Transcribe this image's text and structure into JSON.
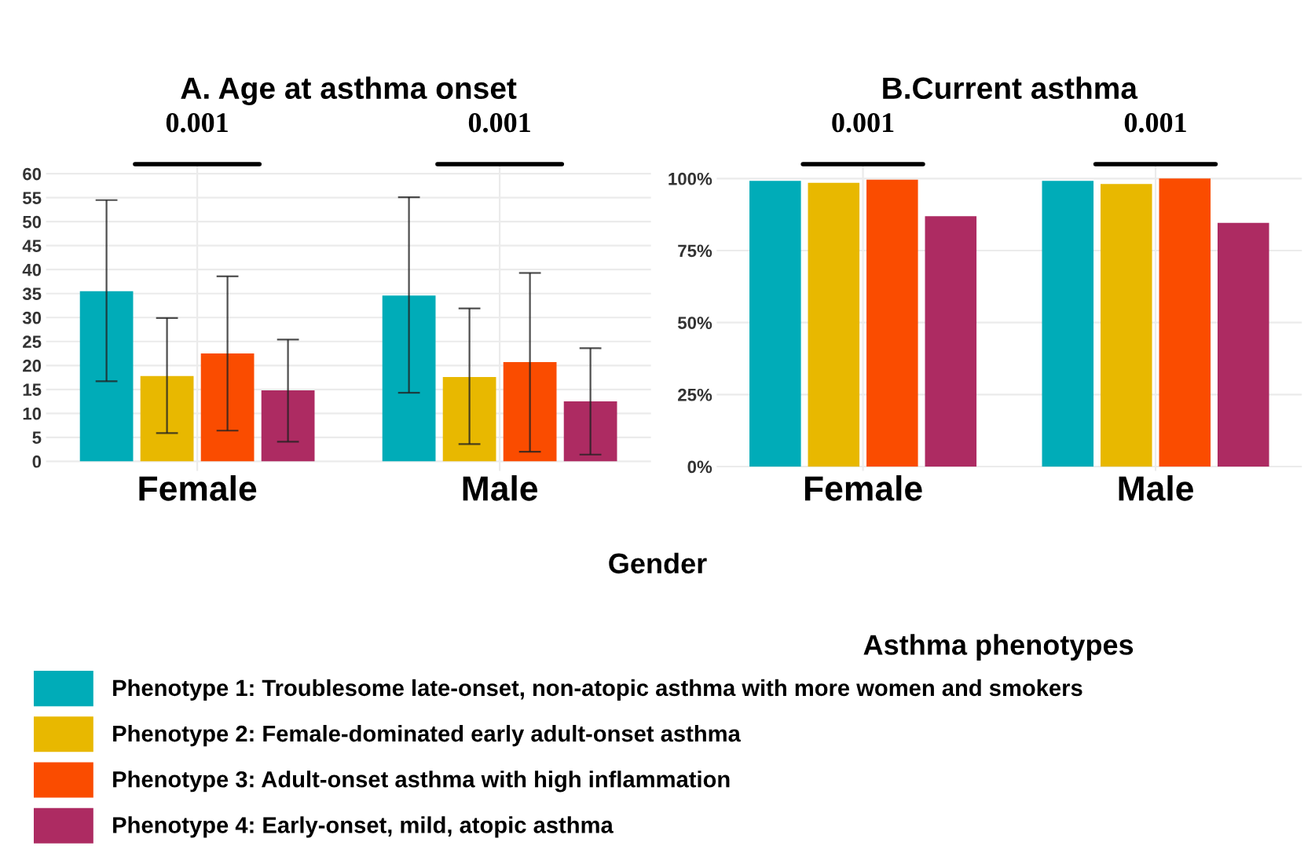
{
  "chart_data": [
    {
      "type": "bar",
      "title": "A. Age at asthma onset",
      "xlabel": "Gender",
      "legend_title": "Asthma phenotypes",
      "legend": "bottom",
      "grid": true,
      "categories": [
        "Female",
        "Male"
      ],
      "ylim": [
        -2,
        62
      ],
      "yticks": [
        0,
        5,
        10,
        15,
        20,
        25,
        30,
        35,
        40,
        45,
        50,
        55,
        60
      ],
      "annotations": [
        "0.001",
        "0.001"
      ],
      "series": [
        {
          "name": "Phenotype 1: Troublesome late-onset, non-atopic asthma with more women and smokers",
          "color": "#00acb8",
          "values": [
            35.5,
            34.6
          ],
          "errors": [
            [
              16.7,
              54.5
            ],
            [
              14.3,
              55.1
            ]
          ]
        },
        {
          "name": "Phenotype 2: Female-dominated early adult-onset asthma",
          "color": "#e8b800",
          "values": [
            17.8,
            17.6
          ],
          "errors": [
            [
              5.9,
              29.9
            ],
            [
              3.6,
              31.9
            ]
          ]
        },
        {
          "name": "Phenotype 3: Adult-onset asthma with high inflammation",
          "color": "#fa4c00",
          "values": [
            22.5,
            20.7
          ],
          "errors": [
            [
              6.4,
              38.6
            ],
            [
              2.0,
              39.3
            ]
          ]
        },
        {
          "name": "Phenotype 4: Early-onset, mild, atopic asthma",
          "color": "#ad2b62",
          "values": [
            14.8,
            12.5
          ],
          "errors": [
            [
              4.1,
              25.4
            ],
            [
              1.4,
              23.6
            ]
          ]
        }
      ]
    },
    {
      "type": "bar",
      "title": "B.Current asthma",
      "grid": true,
      "categories": [
        "Female",
        "Male"
      ],
      "ylim": [
        -1.5,
        105
      ],
      "yticks": [
        {
          "value": 0,
          "label": "0%"
        },
        {
          "value": 25,
          "label": "25%"
        },
        {
          "value": 50,
          "label": "50%"
        },
        {
          "value": 75,
          "label": "75%"
        },
        {
          "value": 100,
          "label": "100%"
        }
      ],
      "annotations": [
        "0.001",
        "0.001"
      ],
      "series": [
        {
          "color": "#00acb8",
          "values": [
            99.2,
            99.2
          ]
        },
        {
          "color": "#e8b800",
          "values": [
            98.5,
            98.1
          ]
        },
        {
          "color": "#fa4c00",
          "values": [
            99.6,
            100
          ]
        },
        {
          "color": "#ad2b62",
          "values": [
            86.9,
            84.6
          ]
        }
      ]
    }
  ]
}
